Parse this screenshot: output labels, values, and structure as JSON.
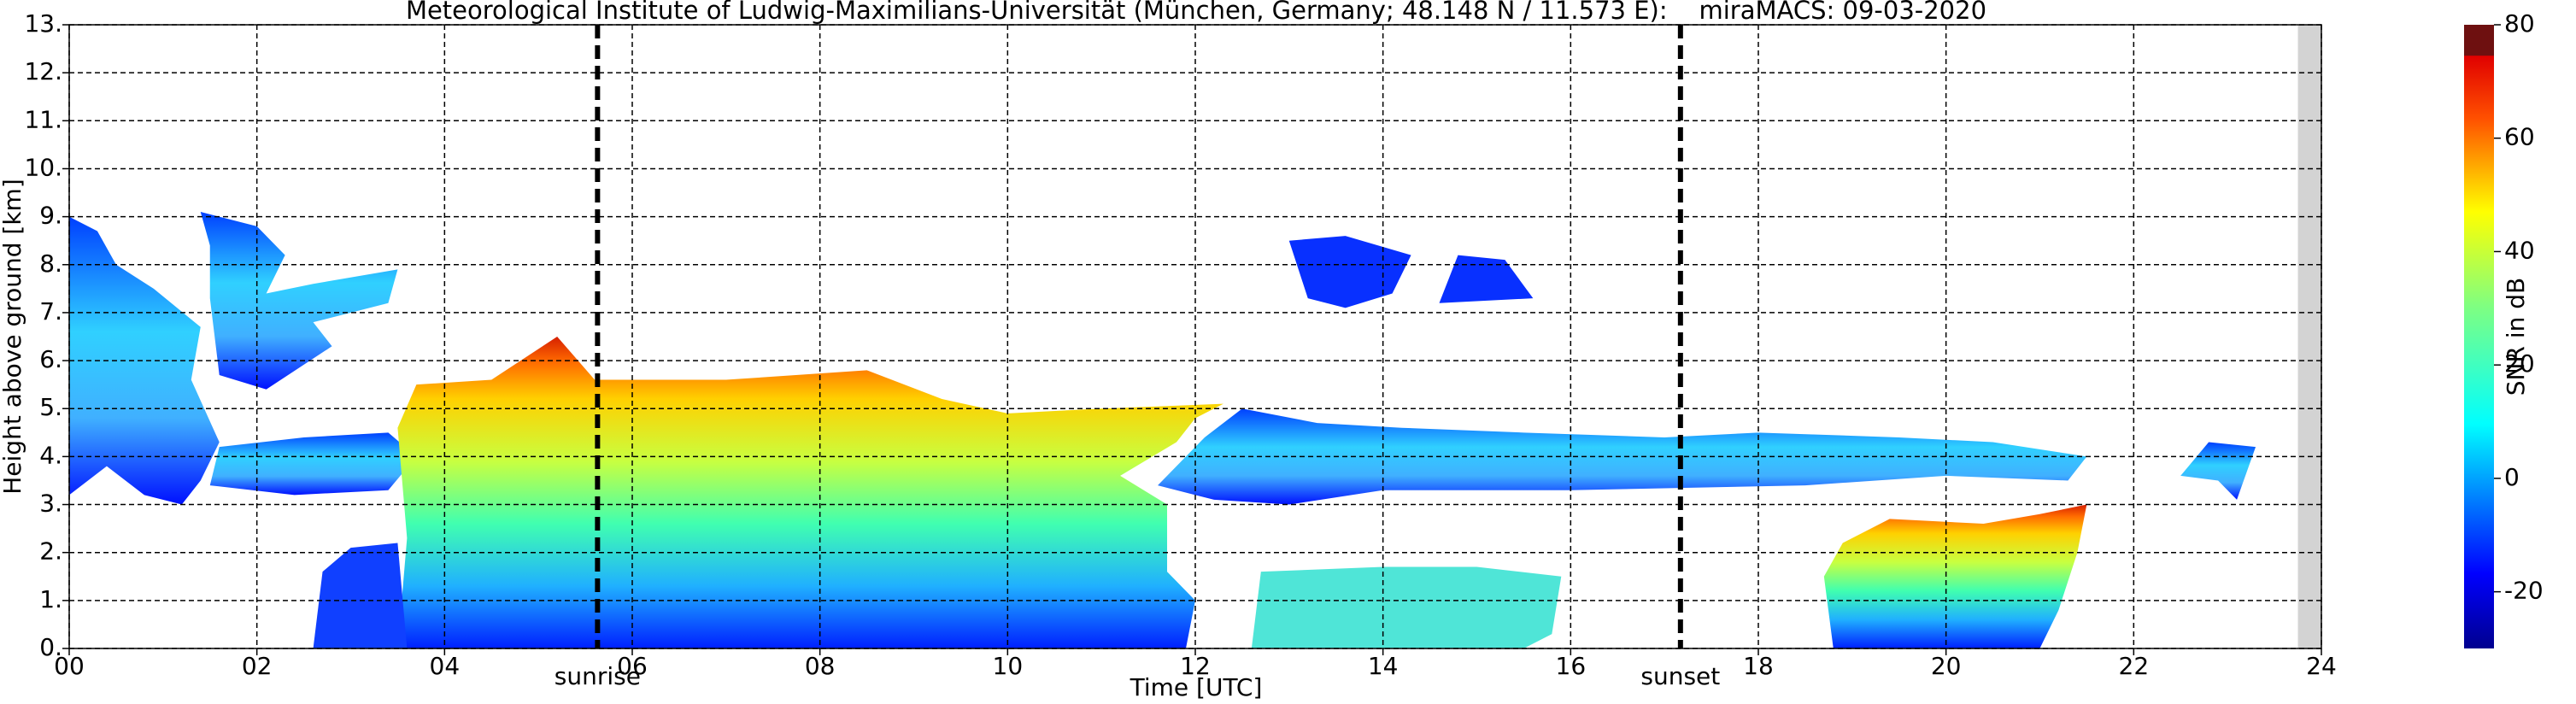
{
  "chart_data": {
    "type": "heatmap",
    "title": "Meteorological Institute of Ludwig-Maximilians-Universität (München, Germany; 48.148 N / 11.573 E):    miraMACS: 09-03-2020",
    "xlabel": "Time [UTC]",
    "ylabel": "Height above ground [km]",
    "xlim": [
      0,
      24
    ],
    "xticks": [
      {
        "value": 0,
        "label": "00"
      },
      {
        "value": 2,
        "label": "02"
      },
      {
        "value": 4,
        "label": "04"
      },
      {
        "value": 6,
        "label": "06"
      },
      {
        "value": 8,
        "label": "08"
      },
      10,
      12,
      14,
      16,
      18,
      20,
      22,
      24
    ],
    "ylim": [
      0,
      13
    ],
    "yticks": [
      {
        "value": 0,
        "label": "0."
      },
      {
        "value": 1,
        "label": "1."
      },
      {
        "value": 2,
        "label": "2."
      },
      {
        "value": 3,
        "label": "3."
      },
      {
        "value": 4,
        "label": "4."
      },
      {
        "value": 5,
        "label": "5."
      },
      {
        "value": 6,
        "label": "6."
      },
      {
        "value": 7,
        "label": "7."
      },
      {
        "value": 8,
        "label": "8."
      },
      {
        "value": 9,
        "label": "9."
      },
      {
        "value": 10,
        "label": "10."
      },
      {
        "value": 11,
        "label": "11."
      },
      {
        "value": 12,
        "label": "12."
      },
      {
        "value": 13,
        "label": "13."
      }
    ],
    "grid": true,
    "annotations": [
      {
        "label": "sunrise",
        "x": 5.63
      },
      {
        "label": "sunset",
        "x": 17.17
      }
    ],
    "missing_data": [
      23.75,
      24
    ],
    "colorbar": {
      "label": "SNR in dB",
      "lim": [
        -30,
        80
      ],
      "ticks": [
        -20,
        0,
        20,
        40,
        60,
        80
      ]
    }
  }
}
